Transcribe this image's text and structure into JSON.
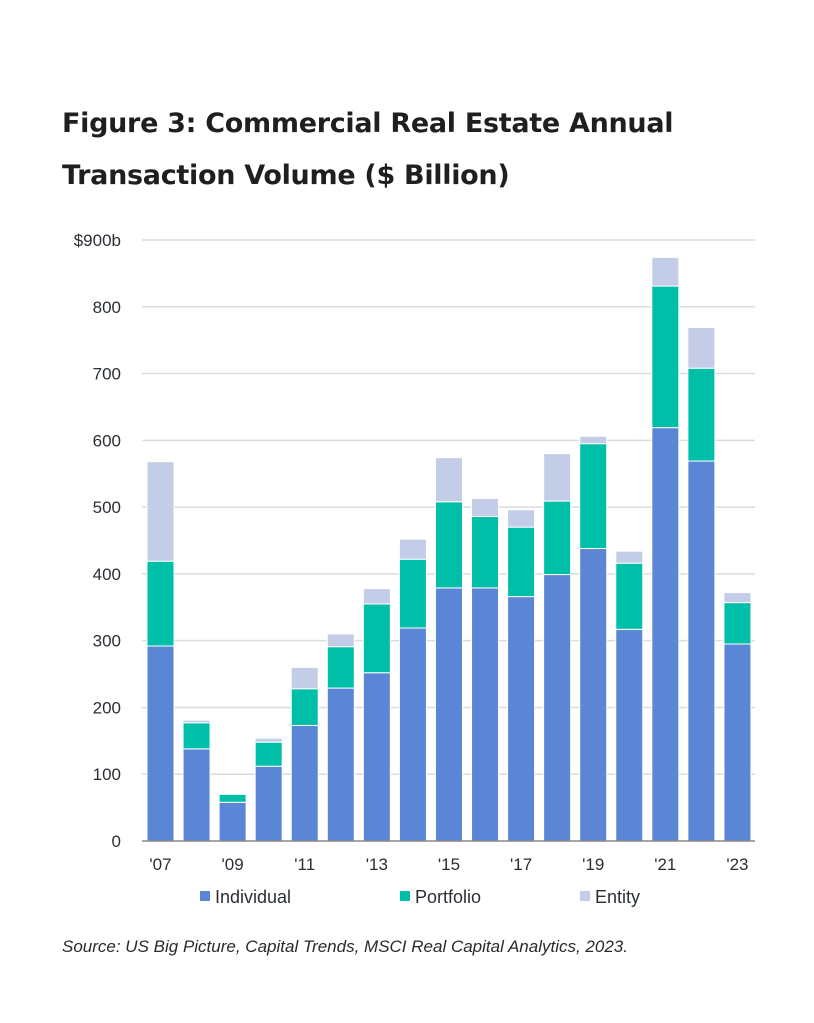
{
  "title": {
    "line1": "Figure 3: Commercial Real Estate Annual",
    "line2": "Transaction Volume ($ Billion)"
  },
  "source": "Source: US Big Picture, Capital Trends, MSCI Real Capital Analytics, 2023.",
  "chart_data": {
    "type": "bar",
    "stacked": true,
    "title": "Figure 3: Commercial Real Estate Annual Transaction Volume ($ Billion)",
    "xlabel": "",
    "ylabel": "",
    "ylim": [
      0,
      900
    ],
    "y_ticks": [
      0,
      100,
      200,
      300,
      400,
      500,
      600,
      700,
      800,
      900
    ],
    "y_tick_labels": [
      "0",
      "100",
      "200",
      "300",
      "400",
      "500",
      "600",
      "700",
      "800",
      "$900b"
    ],
    "grid": true,
    "legend_position": "bottom",
    "categories": [
      "2007",
      "2008",
      "2009",
      "2010",
      "2011",
      "2012",
      "2013",
      "2014",
      "2015",
      "2016",
      "2017",
      "2018",
      "2019",
      "2020",
      "2021",
      "2022",
      "2023"
    ],
    "x_tick_labels": [
      "'07",
      "",
      "'09",
      "",
      "'11",
      "",
      "'13",
      "",
      "'15",
      "",
      "'17",
      "",
      "'19",
      "",
      "'21",
      "",
      "'23"
    ],
    "series": [
      {
        "name": "Individual",
        "color": "#5b86d6",
        "values": [
          292,
          138,
          58,
          112,
          173,
          229,
          252,
          319,
          379,
          379,
          366,
          399,
          438,
          317,
          619,
          569,
          295
        ]
      },
      {
        "name": "Portfolio",
        "color": "#00bfa8",
        "values": [
          127,
          39,
          12,
          36,
          55,
          62,
          103,
          103,
          129,
          107,
          104,
          110,
          157,
          99,
          212,
          139,
          62
        ]
      },
      {
        "name": "Entity",
        "color": "#c3cde8",
        "values": [
          149,
          4,
          1,
          6,
          32,
          19,
          23,
          30,
          66,
          27,
          26,
          71,
          11,
          18,
          43,
          61,
          15
        ]
      }
    ]
  }
}
